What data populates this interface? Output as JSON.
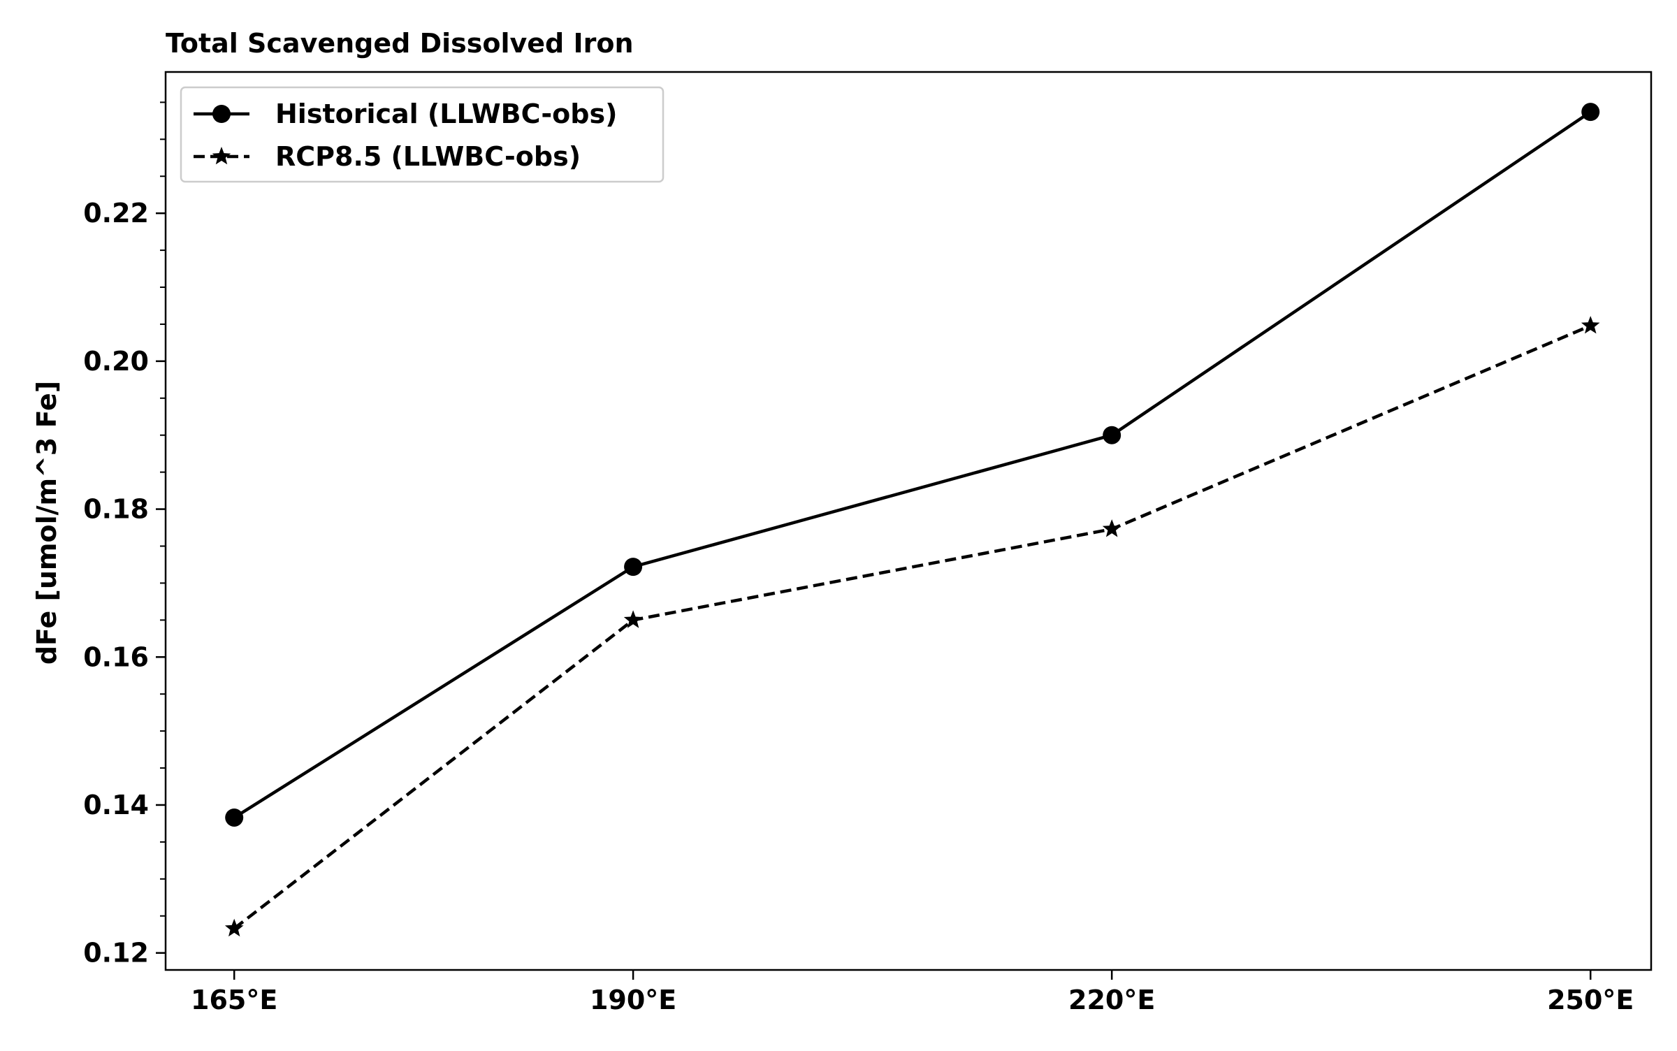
{
  "chart_data": {
    "type": "line",
    "title": "Total Scavenged Dissolved Iron",
    "xlabel": "",
    "ylabel": "dFe [umol/m^3 Fe]",
    "categories": [
      165,
      190,
      220,
      250
    ],
    "x_tick_labels": [
      "165°E",
      "190°E",
      "220°E",
      "250°E"
    ],
    "xlim": [
      160.7,
      253.8
    ],
    "ylim": [
      0.1177,
      0.2391
    ],
    "y_ticks": [
      0.12,
      0.14,
      0.16,
      0.18,
      0.2,
      0.22
    ],
    "y_tick_labels": [
      "0.12",
      "0.14",
      "0.16",
      "0.18",
      "0.20",
      "0.22"
    ],
    "y_minor_step": 0.005,
    "grid": false,
    "legend_position": "top-left",
    "series": [
      {
        "name": "Historical (LLWBC-obs)",
        "values": [
          0.1383,
          0.1722,
          0.19,
          0.2337
        ],
        "line_style": "solid",
        "marker": "circle",
        "color": "#000000"
      },
      {
        "name": "RCP8.5 (LLWBC-obs)",
        "values": [
          0.1233,
          0.165,
          0.1773,
          0.2048
        ],
        "line_style": "dashed",
        "marker": "star",
        "color": "#000000"
      }
    ]
  }
}
